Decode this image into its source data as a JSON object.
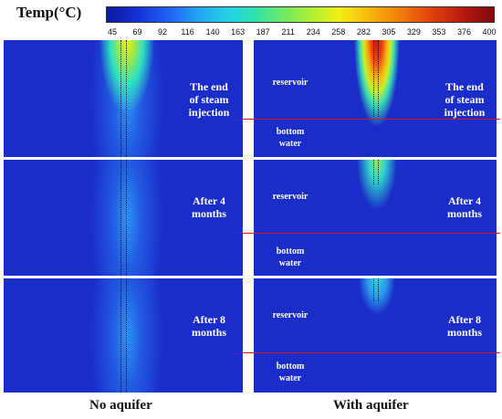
{
  "colorbar": {
    "title": "Temp(°C)",
    "ticks": [
      "45",
      "69",
      "92",
      "116",
      "140",
      "163",
      "187",
      "211",
      "234",
      "258",
      "282",
      "305",
      "329",
      "353",
      "376",
      "400"
    ]
  },
  "rows": [
    {
      "left_label": "The end\nof steam\ninjection",
      "right_label": "The end\nof steam\ninjection"
    },
    {
      "left_label": "After 4\nmonths",
      "right_label": "After 4\nmonths"
    },
    {
      "left_label": "After 8\nmonths",
      "right_label": "After 8\nmonths"
    }
  ],
  "zone_labels": {
    "reservoir": "reservoir",
    "bottom_water": "bottom\nwater"
  },
  "columns": {
    "left": "No aquifer",
    "right": "With aquifer"
  }
}
